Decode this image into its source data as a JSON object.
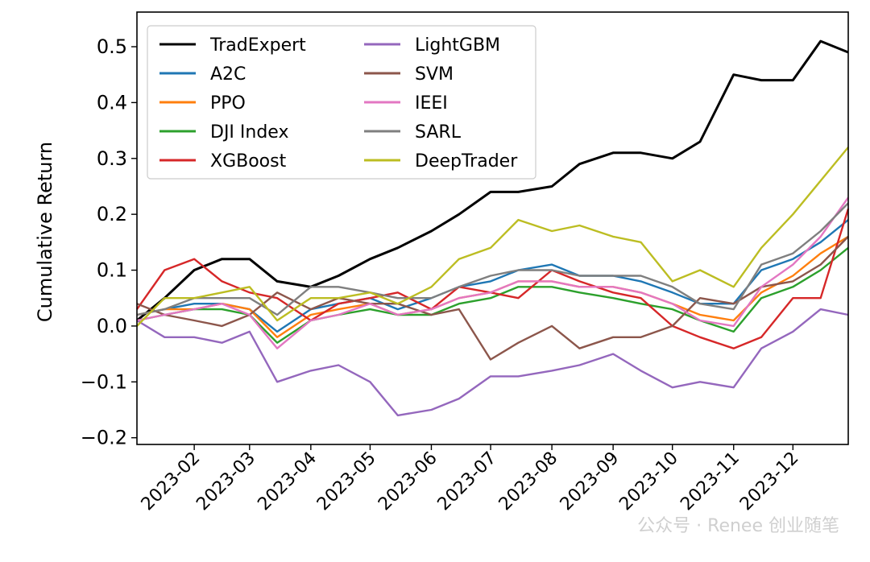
{
  "chart_data": {
    "type": "line",
    "title": "",
    "xlabel": "",
    "ylabel": "Cumulative Return",
    "ylim": [
      -0.212,
      0.562
    ],
    "xlim": [
      "2023-01-03",
      "2023-12-29"
    ],
    "grid": false,
    "legend_placement": "top-left",
    "y_ticks": [
      "0.5",
      "0.4",
      "0.3",
      "0.2",
      "0.1",
      "0.0",
      "−0.1",
      "−0.2"
    ],
    "y_tick_values": [
      0.5,
      0.4,
      0.3,
      0.2,
      0.1,
      0.0,
      -0.1,
      -0.2
    ],
    "x_ticks": [
      "2023-02",
      "2023-03",
      "2023-04",
      "2023-05",
      "2023-06",
      "2023-07",
      "2023-08",
      "2023-09",
      "2023-10",
      "2023-11",
      "2023-12"
    ],
    "x": [
      "2023-01-03",
      "2023-01-17",
      "2023-02-01",
      "2023-02-15",
      "2023-03-01",
      "2023-03-15",
      "2023-04-01",
      "2023-04-15",
      "2023-05-01",
      "2023-05-15",
      "2023-06-01",
      "2023-06-15",
      "2023-07-01",
      "2023-07-15",
      "2023-08-01",
      "2023-08-15",
      "2023-09-01",
      "2023-09-15",
      "2023-10-01",
      "2023-10-15",
      "2023-11-01",
      "2023-11-15",
      "2023-12-01",
      "2023-12-15",
      "2023-12-29"
    ],
    "series": [
      {
        "name": "TradExpert",
        "color": "#000000",
        "values": [
          0.01,
          0.05,
          0.1,
          0.12,
          0.12,
          0.08,
          0.07,
          0.09,
          0.12,
          0.14,
          0.17,
          0.2,
          0.24,
          0.24,
          0.25,
          0.29,
          0.31,
          0.31,
          0.3,
          0.33,
          0.45,
          0.44,
          0.44,
          0.51,
          0.49
        ]
      },
      {
        "name": "A2C",
        "color": "#1f77b4",
        "values": [
          0.02,
          0.03,
          0.04,
          0.04,
          0.03,
          -0.01,
          0.03,
          0.04,
          0.05,
          0.03,
          0.05,
          0.07,
          0.08,
          0.1,
          0.11,
          0.09,
          0.09,
          0.08,
          0.06,
          0.04,
          0.04,
          0.1,
          0.12,
          0.15,
          0.19
        ]
      },
      {
        "name": "PPO",
        "color": "#ff7f0e",
        "values": [
          0.02,
          0.03,
          0.03,
          0.04,
          0.03,
          -0.02,
          0.02,
          0.03,
          0.04,
          0.02,
          0.03,
          0.05,
          0.06,
          0.08,
          0.08,
          0.07,
          0.07,
          0.06,
          0.04,
          0.02,
          0.01,
          0.06,
          0.09,
          0.13,
          0.16
        ]
      },
      {
        "name": "DJI Index",
        "color": "#2ca02c",
        "values": [
          0.01,
          0.02,
          0.03,
          0.03,
          0.02,
          -0.03,
          0.01,
          0.02,
          0.03,
          0.02,
          0.02,
          0.04,
          0.05,
          0.07,
          0.07,
          0.06,
          0.05,
          0.04,
          0.03,
          0.01,
          -0.01,
          0.05,
          0.07,
          0.1,
          0.14
        ]
      },
      {
        "name": "XGBoost",
        "color": "#d62728",
        "values": [
          0.03,
          0.1,
          0.12,
          0.08,
          0.06,
          0.05,
          0.01,
          0.04,
          0.05,
          0.06,
          0.03,
          0.07,
          0.06,
          0.05,
          0.1,
          0.08,
          0.06,
          0.05,
          0.0,
          -0.02,
          -0.04,
          -0.02,
          0.05,
          0.05,
          0.21
        ]
      },
      {
        "name": "LightGBM",
        "color": "#9467bd",
        "values": [
          0.01,
          -0.02,
          -0.02,
          -0.03,
          -0.01,
          -0.1,
          -0.08,
          -0.07,
          -0.1,
          -0.16,
          -0.15,
          -0.13,
          -0.09,
          -0.09,
          -0.08,
          -0.07,
          -0.05,
          -0.08,
          -0.11,
          -0.1,
          -0.11,
          -0.04,
          -0.01,
          0.03,
          0.02
        ]
      },
      {
        "name": "SVM",
        "color": "#8c564b",
        "values": [
          0.04,
          0.02,
          0.01,
          0.0,
          0.02,
          0.06,
          0.03,
          0.05,
          0.04,
          0.04,
          0.02,
          0.03,
          -0.06,
          -0.03,
          0.0,
          -0.04,
          -0.02,
          -0.02,
          0.0,
          0.05,
          0.04,
          0.07,
          0.08,
          0.11,
          0.16
        ]
      },
      {
        "name": "IEEI",
        "color": "#e377c2",
        "values": [
          0.01,
          0.02,
          0.03,
          0.04,
          0.02,
          -0.04,
          0.01,
          0.02,
          0.04,
          0.02,
          0.03,
          0.05,
          0.06,
          0.08,
          0.08,
          0.07,
          0.07,
          0.06,
          0.04,
          0.01,
          0.0,
          0.07,
          0.11,
          0.16,
          0.23
        ]
      },
      {
        "name": "SARL",
        "color": "#7f7f7f",
        "values": [
          0.02,
          0.03,
          0.05,
          0.05,
          0.05,
          0.02,
          0.07,
          0.07,
          0.06,
          0.05,
          0.05,
          0.07,
          0.09,
          0.1,
          0.1,
          0.09,
          0.09,
          0.09,
          0.07,
          0.04,
          0.03,
          0.11,
          0.13,
          0.17,
          0.22
        ]
      },
      {
        "name": "DeepTrader",
        "color": "#bcbd22",
        "values": [
          0.0,
          0.05,
          0.05,
          0.06,
          0.07,
          0.01,
          0.05,
          0.05,
          0.06,
          0.04,
          0.07,
          0.12,
          0.14,
          0.19,
          0.17,
          0.18,
          0.16,
          0.15,
          0.08,
          0.1,
          0.07,
          0.14,
          0.2,
          0.26,
          0.32
        ]
      }
    ]
  },
  "watermark": "公众号 · Renee 创业随笔"
}
